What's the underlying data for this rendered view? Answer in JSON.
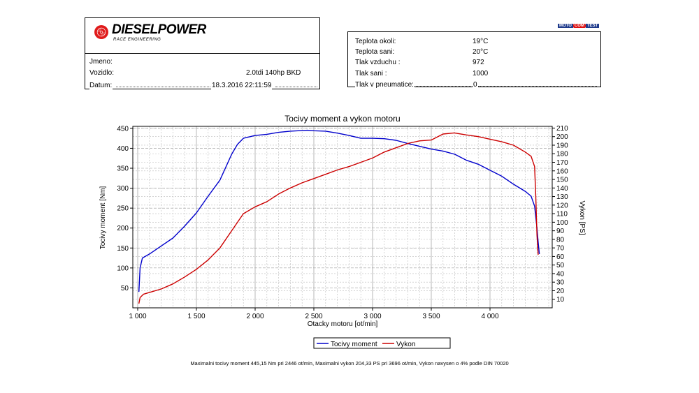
{
  "header": {
    "brand_name": "DIESELPOWER",
    "brand_subtitle": "RACE ENGINEERING",
    "badge": [
      "MOTO",
      "COM",
      "TEST"
    ]
  },
  "info": {
    "rows": [
      {
        "label": "Jmeno:",
        "value": ""
      },
      {
        "label": "Vozidlo:",
        "value": "2.0tdi 140hp BKD"
      },
      {
        "label": "Datum:",
        "value": "18.3.2016 22:11:59"
      }
    ]
  },
  "conditions": {
    "rows": [
      {
        "label": "Teplota okoli:",
        "value": "19°C"
      },
      {
        "label": "Teplota sani:",
        "value": "20°C"
      },
      {
        "label": "Tlak vzduchu :",
        "value": "972"
      },
      {
        "label": "Tlak sani :",
        "value": "1000"
      },
      {
        "label": "Tlak v pneumatice:",
        "value": "0"
      }
    ]
  },
  "footer": {
    "text": "Maximalni tocivy moment 445,15 Nm pri 2446 ot/min,  Maximalni vykon 204,33 PS pri 3696 ot/min,  Vykon navysen o 4% podle DIN 70020"
  },
  "chart_data": {
    "type": "line",
    "title": "Tocivy moment a vykon motoru",
    "xlabel": "Otacky motoru [ot/min]",
    "ylabel": "Tocivy moment [Nm]",
    "y2label": "Vykon [PS]",
    "xlim": [
      1000,
      4500
    ],
    "ylim": [
      0,
      455
    ],
    "y2lim": [
      0,
      212
    ],
    "x_ticks": [
      1000,
      1500,
      2000,
      2500,
      3000,
      3500,
      4000
    ],
    "x_tick_labels": [
      "1 000",
      "1 500",
      "2 000",
      "2 500",
      "3 000",
      "3 500",
      "4 000"
    ],
    "y_ticks": [
      50,
      100,
      150,
      200,
      250,
      300,
      350,
      400,
      450
    ],
    "y2_ticks": [
      10,
      20,
      30,
      40,
      50,
      60,
      70,
      80,
      90,
      100,
      110,
      120,
      130,
      140,
      150,
      160,
      170,
      180,
      190,
      200,
      210
    ],
    "grid": true,
    "legend": "bottom-center",
    "series": [
      {
        "name": "Tocivy moment",
        "axis": "left",
        "color": "#0000cc",
        "points": [
          [
            1010,
            40
          ],
          [
            1020,
            100
          ],
          [
            1040,
            125
          ],
          [
            1100,
            135
          ],
          [
            1200,
            155
          ],
          [
            1300,
            175
          ],
          [
            1400,
            205
          ],
          [
            1500,
            238
          ],
          [
            1600,
            280
          ],
          [
            1700,
            320
          ],
          [
            1800,
            385
          ],
          [
            1850,
            410
          ],
          [
            1900,
            425
          ],
          [
            2000,
            432
          ],
          [
            2100,
            435
          ],
          [
            2200,
            440
          ],
          [
            2300,
            443
          ],
          [
            2446,
            445.15
          ],
          [
            2500,
            444
          ],
          [
            2600,
            443
          ],
          [
            2700,
            438
          ],
          [
            2800,
            432
          ],
          [
            2900,
            425
          ],
          [
            3000,
            425
          ],
          [
            3100,
            424
          ],
          [
            3200,
            420
          ],
          [
            3300,
            412
          ],
          [
            3400,
            405
          ],
          [
            3500,
            398
          ],
          [
            3600,
            393
          ],
          [
            3700,
            385
          ],
          [
            3800,
            370
          ],
          [
            3900,
            360
          ],
          [
            4000,
            345
          ],
          [
            4100,
            330
          ],
          [
            4200,
            310
          ],
          [
            4300,
            292
          ],
          [
            4350,
            280
          ],
          [
            4380,
            255
          ],
          [
            4400,
            200
          ],
          [
            4410,
            165
          ],
          [
            4420,
            135
          ]
        ]
      },
      {
        "name": "Vykon",
        "axis": "right",
        "color": "#cc0000",
        "points": [
          [
            1010,
            5
          ],
          [
            1020,
            12
          ],
          [
            1050,
            16
          ],
          [
            1100,
            18
          ],
          [
            1200,
            22
          ],
          [
            1300,
            28
          ],
          [
            1400,
            36
          ],
          [
            1500,
            45
          ],
          [
            1600,
            56
          ],
          [
            1700,
            70
          ],
          [
            1800,
            90
          ],
          [
            1850,
            100
          ],
          [
            1900,
            110
          ],
          [
            2000,
            118
          ],
          [
            2100,
            124
          ],
          [
            2200,
            133
          ],
          [
            2300,
            140
          ],
          [
            2400,
            146
          ],
          [
            2500,
            151
          ],
          [
            2600,
            156
          ],
          [
            2700,
            161
          ],
          [
            2800,
            165
          ],
          [
            2900,
            170
          ],
          [
            3000,
            175
          ],
          [
            3100,
            182
          ],
          [
            3200,
            187
          ],
          [
            3300,
            192
          ],
          [
            3400,
            195
          ],
          [
            3500,
            196
          ],
          [
            3600,
            203
          ],
          [
            3696,
            204.33
          ],
          [
            3800,
            202
          ],
          [
            3900,
            200
          ],
          [
            4000,
            197
          ],
          [
            4100,
            194
          ],
          [
            4200,
            190
          ],
          [
            4300,
            182
          ],
          [
            4350,
            177
          ],
          [
            4380,
            165
          ],
          [
            4390,
            130
          ],
          [
            4400,
            85
          ],
          [
            4410,
            62
          ]
        ]
      }
    ]
  }
}
